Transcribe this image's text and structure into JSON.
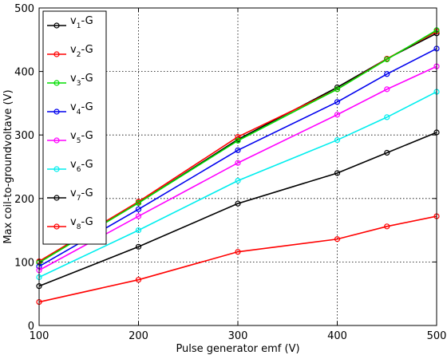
{
  "chart_data": {
    "type": "line",
    "title": "",
    "xlabel": "Pulse generator emf (V)",
    "ylabel": "Max coil-to-groundvoltave (V)",
    "xlim": [
      100,
      500
    ],
    "ylim": [
      0,
      500
    ],
    "xticks": [
      100,
      200,
      300,
      400,
      500
    ],
    "yticks": [
      0,
      100,
      200,
      300,
      400,
      500
    ],
    "grid": true,
    "legend_position": "top-left",
    "x": [
      100,
      200,
      300,
      400,
      450,
      500
    ],
    "series": [
      {
        "name": "v1-G",
        "label_main": "v",
        "label_sub": "1",
        "label_suffix": "-G",
        "color": "#000000",
        "values": [
          100,
          193,
          293,
          375,
          420,
          460
        ]
      },
      {
        "name": "v2-G",
        "label_main": "v",
        "label_sub": "2",
        "label_suffix": "-G",
        "color": "#ff0000",
        "values": [
          101,
          195,
          297,
          372,
          420,
          463
        ]
      },
      {
        "name": "v3-G",
        "label_main": "v",
        "label_sub": "3",
        "label_suffix": "-G",
        "color": "#00dd00",
        "values": [
          99,
          193,
          291,
          372,
          419,
          465
        ]
      },
      {
        "name": "v4-G",
        "label_main": "v",
        "label_sub": "4",
        "label_suffix": "-G",
        "color": "#0000ee",
        "values": [
          93,
          183,
          276,
          352,
          396,
          436
        ]
      },
      {
        "name": "v5-G",
        "label_main": "v",
        "label_sub": "5",
        "label_suffix": "-G",
        "color": "#ff00ff",
        "values": [
          87,
          172,
          256,
          332,
          372,
          408
        ]
      },
      {
        "name": "v6-G",
        "label_main": "v",
        "label_sub": "6",
        "label_suffix": "-G",
        "color": "#00eeee",
        "values": [
          76,
          150,
          228,
          292,
          328,
          368
        ]
      },
      {
        "name": "v7-G",
        "label_main": "v",
        "label_sub": "7",
        "label_suffix": "-G",
        "color": "#000000",
        "values": [
          62,
          124,
          192,
          240,
          272,
          304
        ]
      },
      {
        "name": "v8-G",
        "label_main": "v",
        "label_sub": "8",
        "label_suffix": "-G",
        "color": "#ff0000",
        "values": [
          37,
          72,
          116,
          136,
          156,
          172
        ]
      }
    ]
  }
}
